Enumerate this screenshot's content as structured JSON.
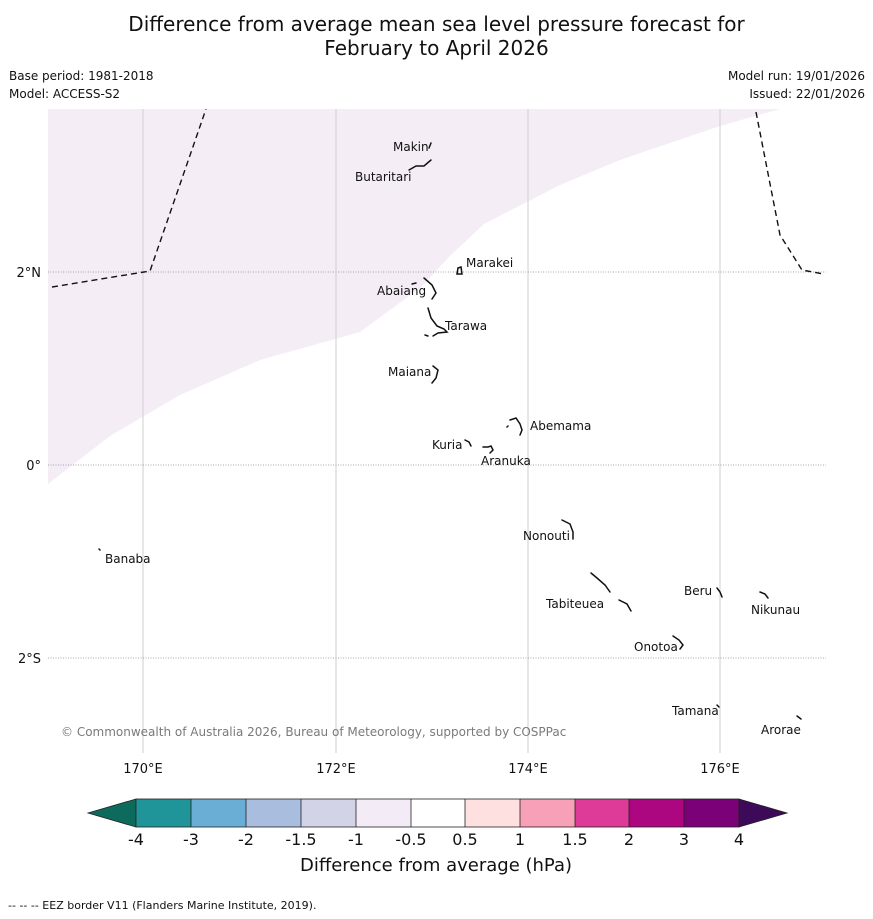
{
  "title_line1": "Difference from average mean sea level pressure forecast for",
  "title_line2": "February to April 2026",
  "meta": {
    "base_period": "Base period: 1981-2018",
    "model": "Model: ACCESS-S2",
    "model_run": "Model run: 19/01/2026",
    "issued": "Issued: 22/01/2026"
  },
  "lat_labels": [
    "2°N",
    "0°",
    "2°S"
  ],
  "lon_labels": [
    "170°E",
    "172°E",
    "174°E",
    "176°E"
  ],
  "places": {
    "makin": "Makin",
    "butaritari": "Butaritari",
    "marakei": "Marakei",
    "abaiang": "Abaiang",
    "tarawa": "Tarawa",
    "maiana": "Maiana",
    "abemama": "Abemama",
    "kuria": "Kuria",
    "aranuka": "Aranuka",
    "nonouti": "Nonouti",
    "banaba": "Banaba",
    "tabiteuea": "Tabiteuea",
    "beru": "Beru",
    "nikunau": "Nikunau",
    "onotoa": "Onotoa",
    "tamana": "Tamana",
    "arorae": "Arorae"
  },
  "copyright": "© Commonwealth of Australia 2026, Bureau of Meteorology, supported by COSPPac",
  "colorbar": {
    "ticks": [
      "-4",
      "-3",
      "-2",
      "-1.5",
      "-1",
      "-0.5",
      "0.5",
      "1",
      "1.5",
      "2",
      "3",
      "4"
    ],
    "label": "Difference from average (hPa)",
    "colors": {
      "under": "#0d6b5e",
      "over": "#3d0a5a",
      "b1": "#1f9499",
      "b2": "#6aaed6",
      "b3": "#a9bedf",
      "b4": "#d3d3e7",
      "b5": "#f3ecf6",
      "b6": "#ffffff",
      "b7": "#fde0df",
      "b8": "#f8a0b8",
      "b9": "#de3a98",
      "b10": "#ac0681",
      "b11": "#7a0177"
    }
  },
  "field_color": "#f4edf6",
  "footnote": "--  --  -- EEZ border V11 (Flanders Marine Institute, 2019)."
}
